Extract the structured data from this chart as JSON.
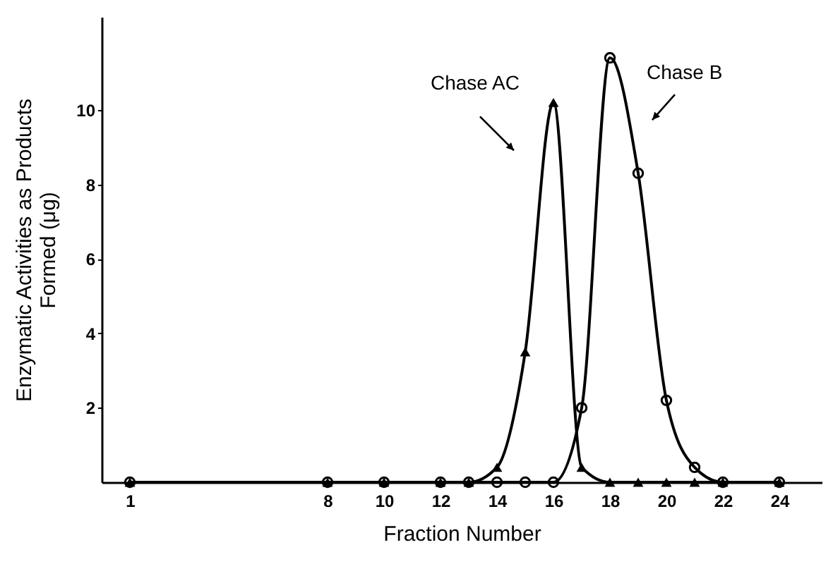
{
  "chart_data": {
    "type": "line",
    "xlabel": "Fraction  Number",
    "ylabel": "Enzymatic Activities as  Products\nFormed (μg)",
    "xlim": [
      0,
      25.5
    ],
    "xticks": [
      1,
      8,
      10,
      12,
      14,
      16,
      18,
      20,
      22,
      24
    ],
    "ylim": [
      0,
      12.5
    ],
    "yticks": [
      2,
      4,
      6,
      8,
      10
    ],
    "grid": false,
    "series": [
      {
        "name": "Chase AC",
        "color": "#000000",
        "marker": "triangle",
        "x": [
          1,
          8,
          10,
          12,
          13,
          14,
          15,
          16,
          17,
          18,
          19,
          20,
          21,
          22,
          24
        ],
        "values": [
          0,
          0,
          0,
          0,
          0,
          0.4,
          3.5,
          10.2,
          0.4,
          0,
          0,
          0,
          0,
          0,
          0
        ]
      },
      {
        "name": "Chase B",
        "color": "#000000",
        "marker": "circle",
        "x": [
          1,
          8,
          10,
          12,
          13,
          14,
          15,
          16,
          17,
          18,
          19,
          20,
          21,
          22,
          24
        ],
        "values": [
          0,
          0,
          0,
          0,
          0,
          0,
          0,
          0,
          2.0,
          11.4,
          8.3,
          2.2,
          0.4,
          0,
          0
        ]
      }
    ]
  }
}
